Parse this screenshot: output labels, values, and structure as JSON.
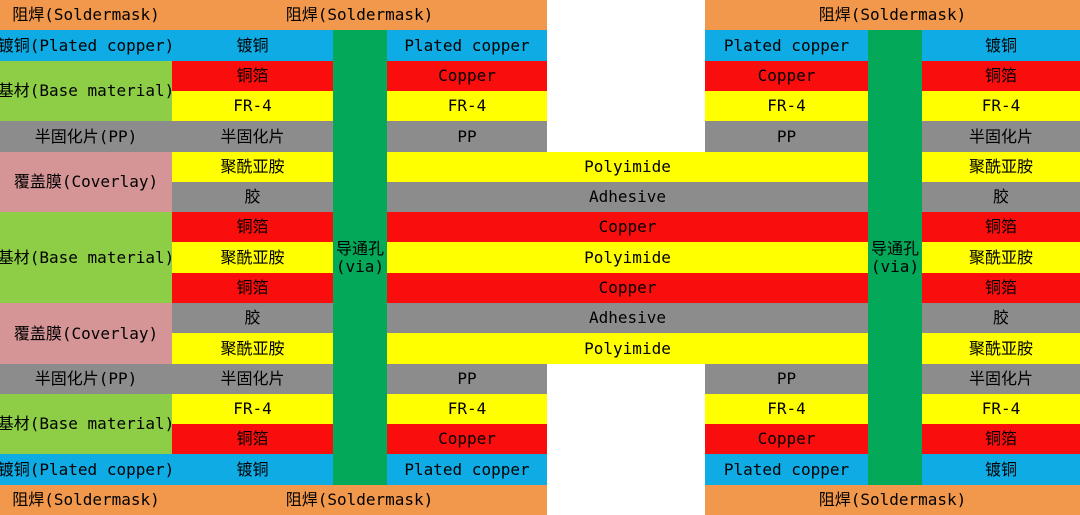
{
  "labels": {
    "soldermask": "阻焊(Soldermask)",
    "plated_copper_full": "镀铜(Plated copper)",
    "plated_copper_cn": "镀铜",
    "plated_copper_en": "Plated copper",
    "base_material": "基材(Base material)",
    "copper_cn": "铜箔",
    "copper_en": "Copper",
    "fr4": "FR-4",
    "pp_full": "半固化片(PP)",
    "pp_cn": "半固化片",
    "pp_en": "PP",
    "coverlay": "覆盖膜(Coverlay)",
    "polyimide_cn": "聚酰亚胺",
    "polyimide_en": "Polyimide",
    "adhesive_cn": "胶",
    "adhesive_en": "Adhesive",
    "via_cn": "导通孔",
    "via_en": "(via)"
  },
  "colors": {
    "soldermask_orange": "#F2984C",
    "plated_copper_blue": "#0FABE4",
    "copper_red": "#F90D0D",
    "yellow_fr4_polyimide": "#FFFF00",
    "gray_pp_adhesive": "#8C8C8C",
    "base_material_green": "#8DCE46",
    "coverlay_pink": "#D59495",
    "via_green": "#04A859",
    "background": "#FFFFFF"
  },
  "left_legend_top_to_bottom": [
    "阻焊(Soldermask)",
    "镀铜(Plated copper)",
    "基材(Base material)",
    "半固化片(PP)",
    "覆盖膜(Coverlay)",
    "基材(Base material)",
    "覆盖膜(Coverlay)",
    "半固化片(PP)",
    "基材(Base material)",
    "镀铜(Plated copper)",
    "阻焊(Soldermask)"
  ],
  "layer_order_top_to_bottom": [
    "soldermask",
    "plated_copper",
    "copper",
    "fr4",
    "pp",
    "polyimide",
    "adhesive",
    "copper",
    "polyimide",
    "copper",
    "adhesive",
    "polyimide",
    "pp",
    "fr4",
    "copper",
    "plated_copper",
    "soldermask"
  ],
  "structure_notes": {
    "via_columns": 2,
    "flex_layers_span_center_gap": [
      "Polyimide",
      "Adhesive",
      "Copper",
      "Polyimide",
      "Copper",
      "Adhesive",
      "Polyimide"
    ]
  }
}
